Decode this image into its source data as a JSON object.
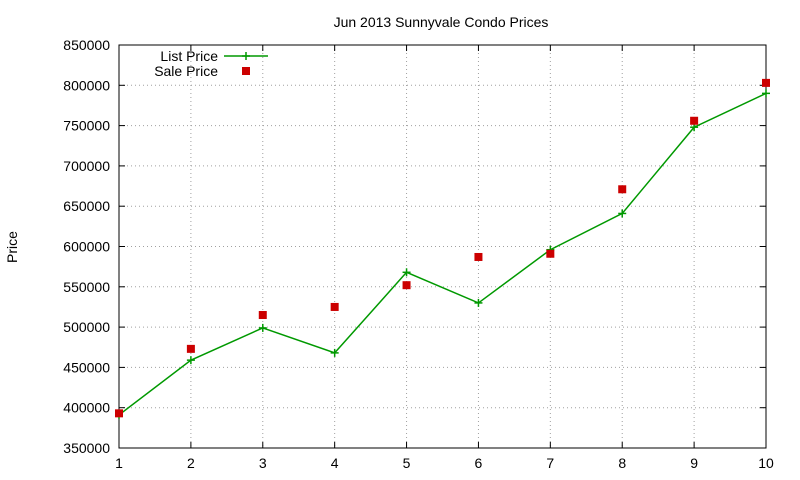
{
  "chart_data": {
    "type": "line",
    "title": "Jun 2013 Sunnyvale Condo Prices",
    "xlabel": "",
    "ylabel": "Price",
    "xlim": [
      1,
      10
    ],
    "ylim": [
      350000,
      850000
    ],
    "x_ticks": [
      1,
      2,
      3,
      4,
      5,
      6,
      7,
      8,
      9,
      10
    ],
    "y_ticks": [
      350000,
      400000,
      450000,
      500000,
      550000,
      600000,
      650000,
      700000,
      750000,
      800000,
      850000
    ],
    "grid": true,
    "legend_position": "top-left",
    "x": [
      1,
      2,
      3,
      4,
      5,
      6,
      7,
      8,
      9,
      10
    ],
    "series": [
      {
        "name": "List Price",
        "style": "line+cross",
        "color": "#009900",
        "values": [
          391000,
          459000,
          499000,
          468000,
          568000,
          530000,
          596000,
          641000,
          748000,
          790000
        ]
      },
      {
        "name": "Sale Price",
        "style": "square-points",
        "color": "#cc0000",
        "values": [
          393000,
          473000,
          515000,
          525000,
          552000,
          587000,
          591000,
          671000,
          756000,
          803000
        ]
      }
    ]
  }
}
